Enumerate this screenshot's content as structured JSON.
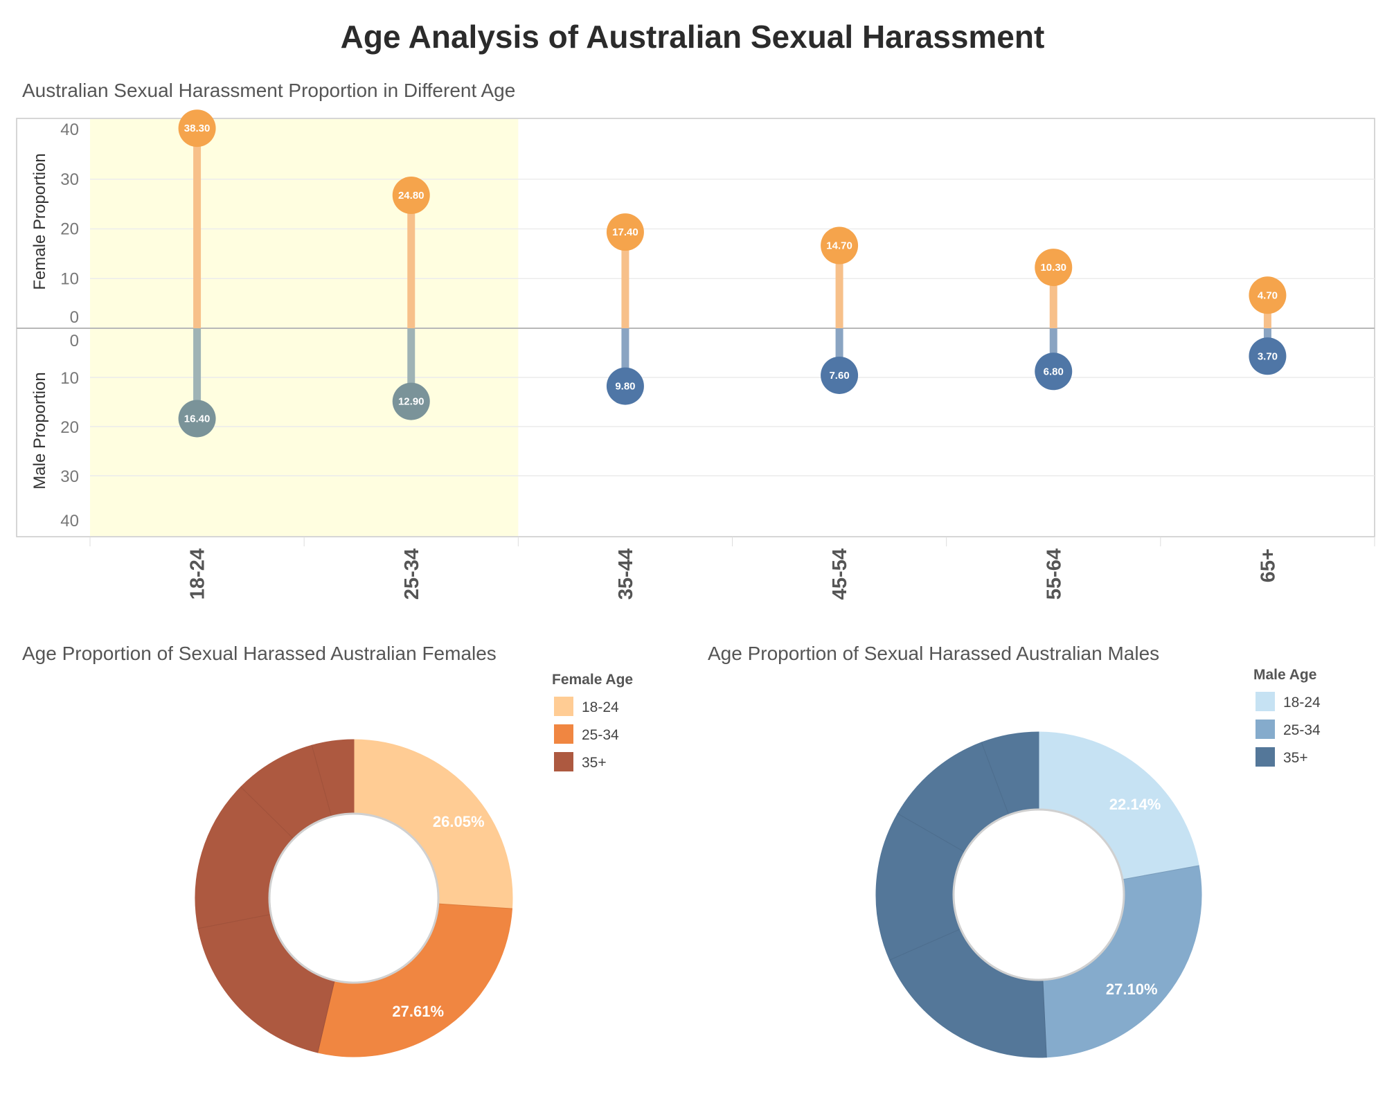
{
  "page": {
    "title": "Age Analysis of Australian Sexual Harassment"
  },
  "chart_data": [
    {
      "type": "lollipop",
      "title": "Australian Sexual Harassment Proportion in Different Age",
      "categories": [
        "18-24",
        "25-34",
        "35-44",
        "45-54",
        "55-64",
        "65+"
      ],
      "highlighted_categories": [
        "18-24",
        "25-34"
      ],
      "series": [
        {
          "name": "Female Proportion",
          "values": [
            38.3,
            24.8,
            17.4,
            14.7,
            10.3,
            4.7
          ],
          "color": "#f5a44c",
          "stem_color": "#f7c08a"
        },
        {
          "name": "Male Proportion",
          "values": [
            16.4,
            12.9,
            9.8,
            7.6,
            6.8,
            3.7
          ],
          "color": "#4f76a6",
          "highlight_color": "#7a9399",
          "stem_color": "#8aa4c2"
        }
      ],
      "value_labels": {
        "female": [
          "38.30",
          "24.80",
          "17.40",
          "14.70",
          "10.30",
          "4.70"
        ],
        "male": [
          "16.40",
          "12.90",
          "9.80",
          "7.60",
          "6.80",
          "3.70"
        ]
      },
      "ylabel_top": "Female Proportion",
      "ylabel_bottom": "Male Proportion",
      "ylim_top": [
        0,
        40
      ],
      "ylim_bottom": [
        0,
        40
      ],
      "yticks_top": [
        "40",
        "30",
        "20",
        "10",
        "0"
      ],
      "yticks_bottom": [
        "0",
        "10",
        "20",
        "30",
        "40"
      ],
      "grid": true,
      "highlight_color": "#fffee0"
    },
    {
      "type": "pie",
      "style": "donut",
      "title": "Age Proportion of Sexual Harassed Australian Females",
      "legend_title": "Female Age",
      "legend": [
        "18-24",
        "25-34",
        "35+"
      ],
      "colors": {
        "18-24": "#ffcc94",
        "25-34": "#f08641",
        "35+": "#ad5940"
      },
      "slices": [
        {
          "category": "18-24",
          "value": 26.05,
          "label": "26.05%"
        },
        {
          "category": "25-34",
          "value": 27.61,
          "label": "27.61%"
        },
        {
          "category": "35+",
          "value": 18.28,
          "label": ""
        },
        {
          "category": "35+",
          "value": 15.43,
          "label": ""
        },
        {
          "category": "35+",
          "value": 8.36,
          "label": ""
        },
        {
          "category": "35+",
          "value": 4.27,
          "label": ""
        }
      ]
    },
    {
      "type": "pie",
      "style": "donut",
      "title": "Age Proportion of Sexual Harassed Australian Males",
      "legend_title": "Male Age",
      "legend": [
        "18-24",
        "25-34",
        "35+"
      ],
      "colors": {
        "18-24": "#c6e2f3",
        "25-34": "#85abcc",
        "35+": "#547799"
      },
      "slices": [
        {
          "category": "18-24",
          "value": 22.14,
          "label": "22.14%"
        },
        {
          "category": "25-34",
          "value": 27.1,
          "label": "27.10%"
        },
        {
          "category": "35+",
          "value": 19.19,
          "label": ""
        },
        {
          "category": "35+",
          "value": 14.88,
          "label": ""
        },
        {
          "category": "35+",
          "value": 10.97,
          "label": ""
        },
        {
          "category": "35+",
          "value": 5.72,
          "label": ""
        }
      ]
    }
  ]
}
